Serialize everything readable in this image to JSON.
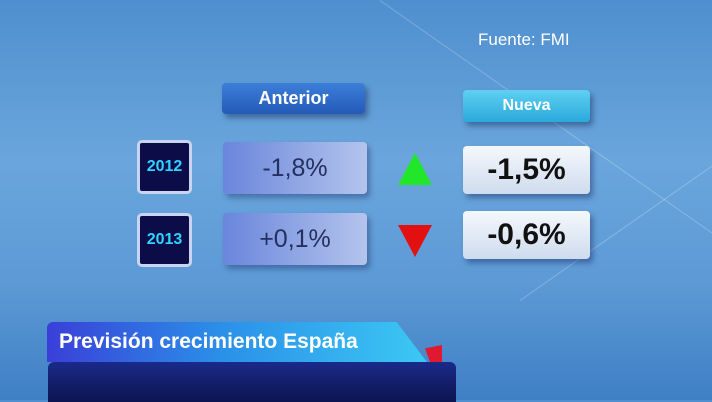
{
  "source": "Fuente: FMI",
  "headers": {
    "previous": "Anterior",
    "new": "Nueva"
  },
  "rows": [
    {
      "year": "2012",
      "previous": "-1,8%",
      "new": "-1,5%",
      "trend": "up",
      "trend_color": "#22e62a"
    },
    {
      "year": "2013",
      "previous": "+0,1%",
      "new": "-0,6%",
      "trend": "down",
      "trend_color": "#e21010"
    }
  ],
  "caption": "Previsión crecimiento España"
}
